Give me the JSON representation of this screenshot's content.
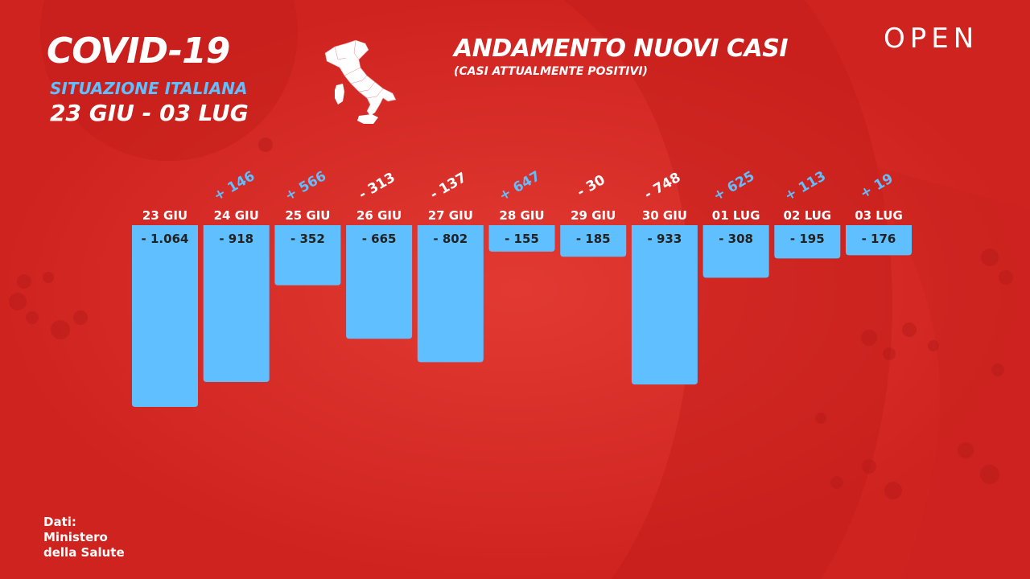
{
  "header": {
    "title": "COVID-19",
    "subtitle": "SITUAZIONE ITALIANA",
    "date_range": "23 GIU - 03 LUG"
  },
  "brand": {
    "logo_text": "OPEN"
  },
  "icons": {
    "map": "italy-map-icon"
  },
  "colors": {
    "background": "#d82a26",
    "bar": "#5fbfff",
    "positive_delta": "#5fbfff",
    "negative_delta": "#ffffff",
    "text": "#ffffff",
    "value_text": "#222222"
  },
  "source": {
    "line1": "Dati:",
    "line2": "Ministero",
    "line3": "della Salute"
  },
  "chart_data": {
    "type": "bar",
    "title": "ANDAMENTO NUOVI CASI",
    "subtitle": "(CASI ATTUALMENTE POSITIVI)",
    "categories": [
      "23 GIU",
      "24 GIU",
      "25 GIU",
      "26 GIU",
      "27 GIU",
      "28 GIU",
      "29 GIU",
      "30 GIU",
      "01 LUG",
      "02 LUG",
      "03 LUG"
    ],
    "values": [
      -1064,
      -918,
      -352,
      -665,
      -802,
      -155,
      -185,
      -933,
      -308,
      -195,
      -176
    ],
    "value_labels": [
      "- 1.064",
      "- 918",
      "- 352",
      "- 665",
      "- 802",
      "- 155",
      "- 185",
      "- 933",
      "- 308",
      "- 195",
      "- 176"
    ],
    "delta_labels": [
      "",
      "+ 146",
      "+ 566",
      "- 313",
      "- 137",
      "+ 647",
      "- 30",
      "- 748",
      "+ 625",
      "+ 113",
      "+ 19"
    ],
    "delta_sign": [
      0,
      1,
      1,
      -1,
      -1,
      1,
      -1,
      -1,
      1,
      1,
      1
    ],
    "ylim": [
      -1064,
      0
    ],
    "grid": false,
    "xlabel": "",
    "ylabel": ""
  }
}
